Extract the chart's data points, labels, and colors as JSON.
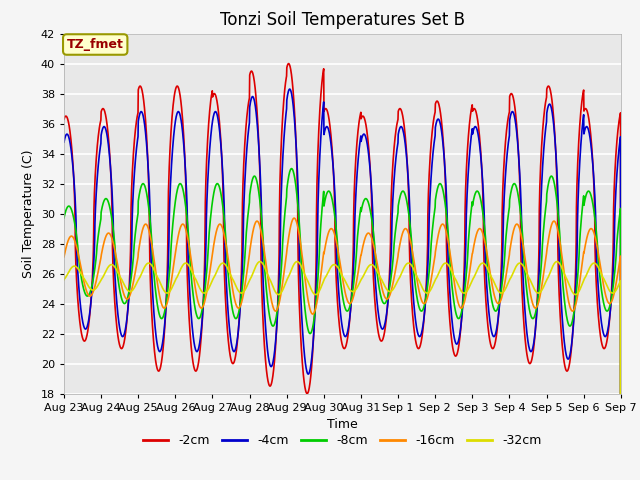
{
  "title": "Tonzi Soil Temperatures Set B",
  "xlabel": "Time",
  "ylabel": "Soil Temperature (C)",
  "annotation": "TZ_fmet",
  "ylim": [
    18,
    42
  ],
  "yticks": [
    18,
    20,
    22,
    24,
    26,
    28,
    30,
    32,
    34,
    36,
    38,
    40,
    42
  ],
  "series": [
    "-2cm",
    "-4cm",
    "-8cm",
    "-16cm",
    "-32cm"
  ],
  "colors": [
    "#dd0000",
    "#0000cc",
    "#00cc00",
    "#ff8800",
    "#dddd00"
  ],
  "linewidths": [
    1.2,
    1.2,
    1.2,
    1.2,
    1.2
  ],
  "n_days": 15,
  "points_per_day": 144,
  "plot_bg_color": "#e8e8e8",
  "fig_bg_color": "#f5f5f5",
  "xtick_labels": [
    "Aug 23",
    "Aug 24",
    "Aug 25",
    "Aug 26",
    "Aug 27",
    "Aug 28",
    "Aug 29",
    "Aug 30",
    "Aug 31",
    "Sep 1",
    "Sep 2",
    "Sep 3",
    "Sep 4",
    "Sep 5",
    "Sep 6",
    "Sep 7"
  ],
  "legend_labels": [
    "-2cm",
    "-4cm",
    "-8cm",
    "-16cm",
    "-32cm"
  ],
  "legend_colors": [
    "#dd0000",
    "#0000cc",
    "#00cc00",
    "#ff8800",
    "#dddd00"
  ],
  "title_fontsize": 12,
  "tick_fontsize": 8,
  "label_fontsize": 9
}
